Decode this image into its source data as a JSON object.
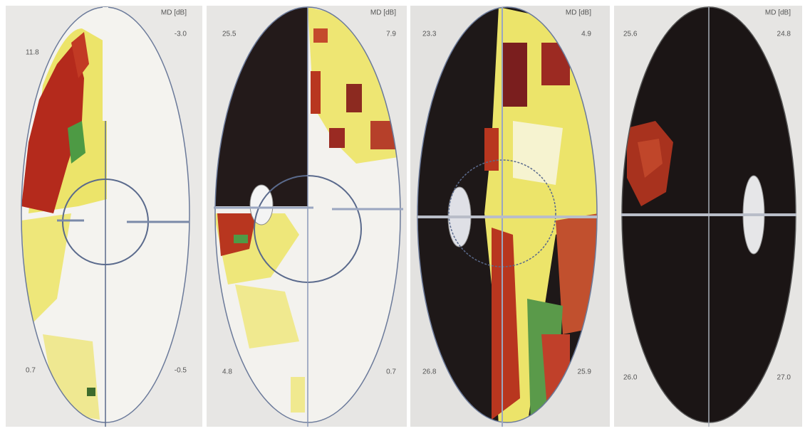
{
  "panels": [
    {
      "md_label": "MD [dB]",
      "md_value": "-3.0",
      "top_left": "11.8",
      "bottom_left": "0.7",
      "bottom_right": "-0.5"
    },
    {
      "md_label": "MD [dB]",
      "md_value": "7.9",
      "top_left": "25.5",
      "bottom_left": "4.8",
      "bottom_right": "0.7"
    },
    {
      "md_label": "MD [dB]",
      "md_value": "4.9",
      "top_left": "23.3",
      "bottom_left": "26.8",
      "bottom_right": "25.9"
    },
    {
      "md_label": "MD [dB]",
      "md_value": "24.8",
      "top_left": "25.6",
      "bottom_left": "26.0",
      "bottom_right": "27.0"
    }
  ]
}
